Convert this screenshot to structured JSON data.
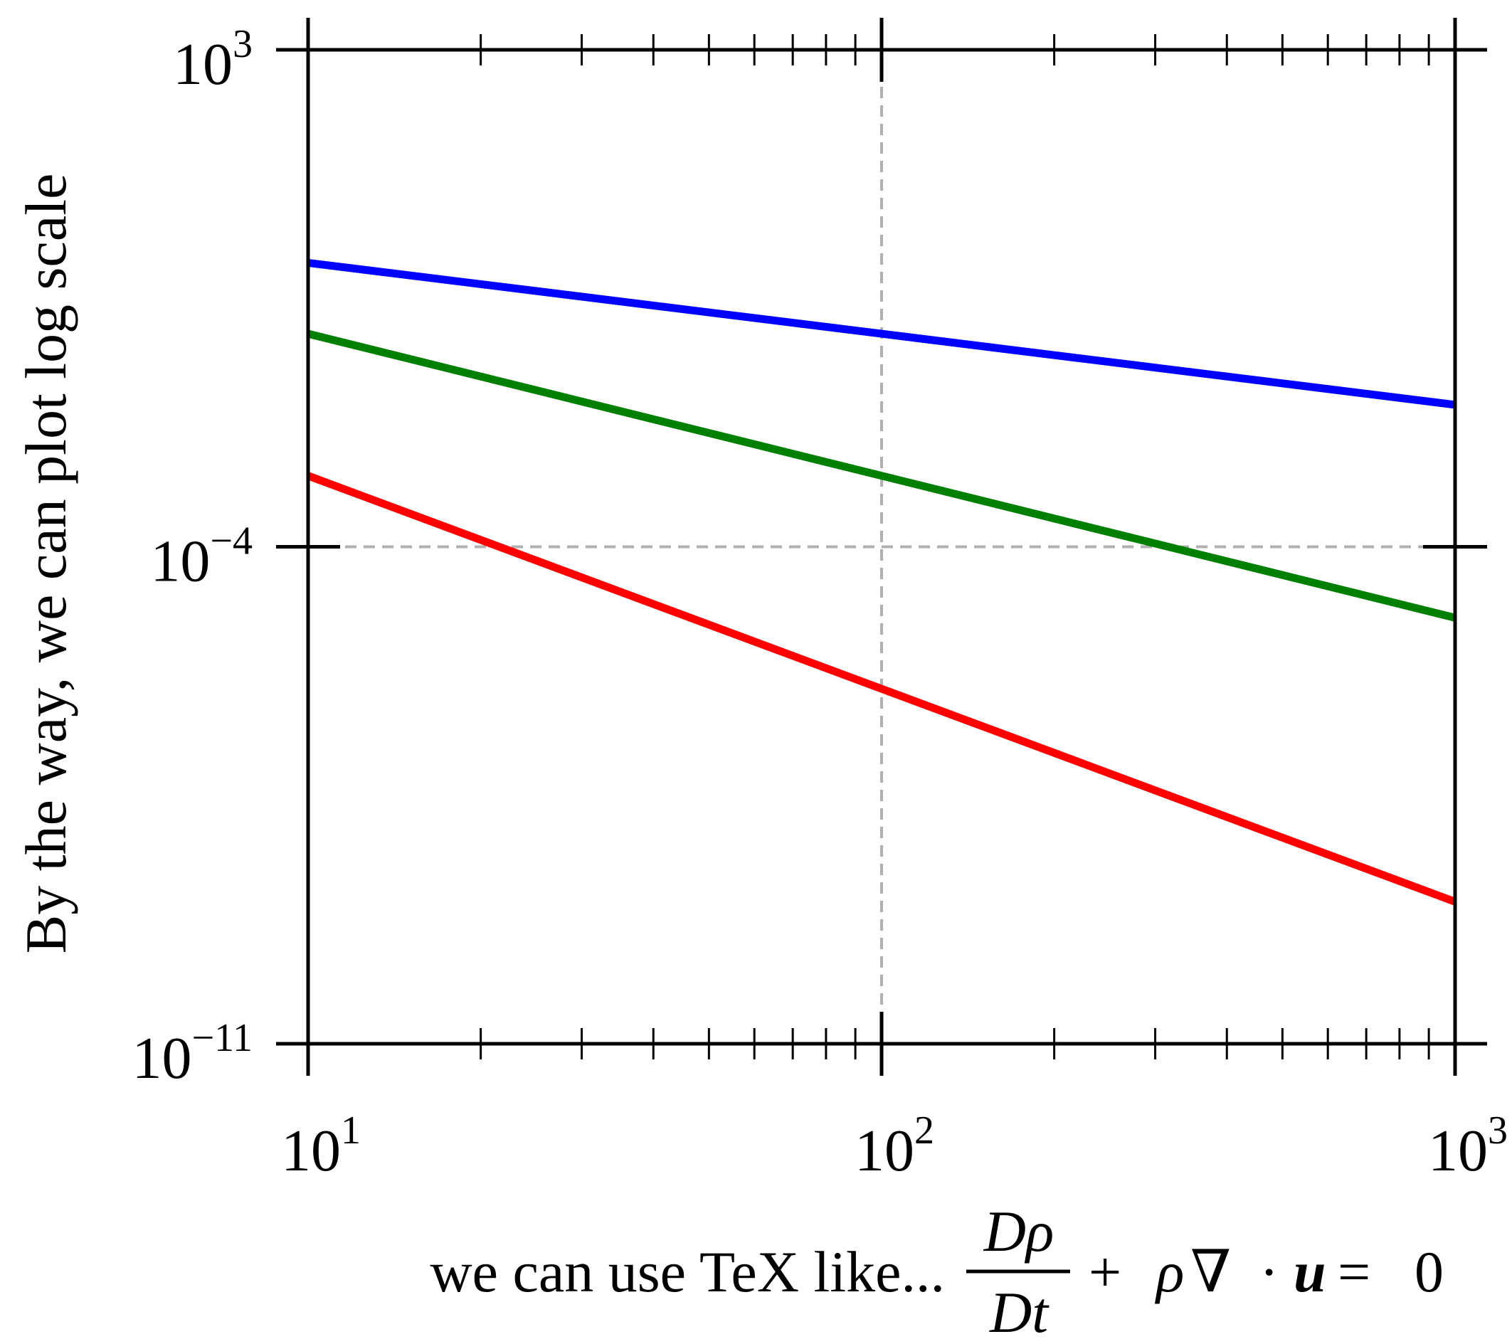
{
  "chart_data": {
    "type": "line",
    "title": "",
    "xscale": "log",
    "yscale": "log",
    "xlim": [
      10,
      1000
    ],
    "ylim": [
      1e-11,
      1000
    ],
    "grid": {
      "style": "dashed",
      "color": "#b0b0b0",
      "x_lines_at": [
        100
      ],
      "y_lines_at": [
        0.0001
      ]
    },
    "x_ticks": [
      {
        "value": 10,
        "base": "10",
        "exp": "1"
      },
      {
        "value": 100,
        "base": "10",
        "exp": "2"
      },
      {
        "value": 1000,
        "base": "10",
        "exp": "3"
      }
    ],
    "y_ticks": [
      {
        "value": 1000,
        "base": "10",
        "exp": "3"
      },
      {
        "value": 0.0001,
        "base": "10",
        "exp": "−4"
      },
      {
        "value": 1e-11,
        "base": "10",
        "exp": "−11"
      }
    ],
    "ylabel": "By the way, we can plot log scale",
    "xlabel": {
      "text": "we can use TeX like...",
      "fraction_numerator": "Dρ",
      "fraction_denominator": "Dt",
      "tail_plus": "+",
      "tail_rho": "ρ",
      "tail_nabla": "∇",
      "tail_dot": "·",
      "tail_u": "u",
      "tail_eq": "=",
      "tail_zero": "0"
    },
    "series": [
      {
        "color": "#0000ff",
        "x": [
          10,
          100,
          1000
        ],
        "y": [
          1,
          0.1,
          0.01
        ]
      },
      {
        "color": "#007f00",
        "x": [
          10,
          100,
          1000
        ],
        "y": [
          0.1,
          0.001,
          1e-05
        ]
      },
      {
        "color": "#ff0000",
        "x": [
          10,
          100,
          1000
        ],
        "y": [
          0.001,
          1e-06,
          1e-09
        ]
      }
    ]
  }
}
